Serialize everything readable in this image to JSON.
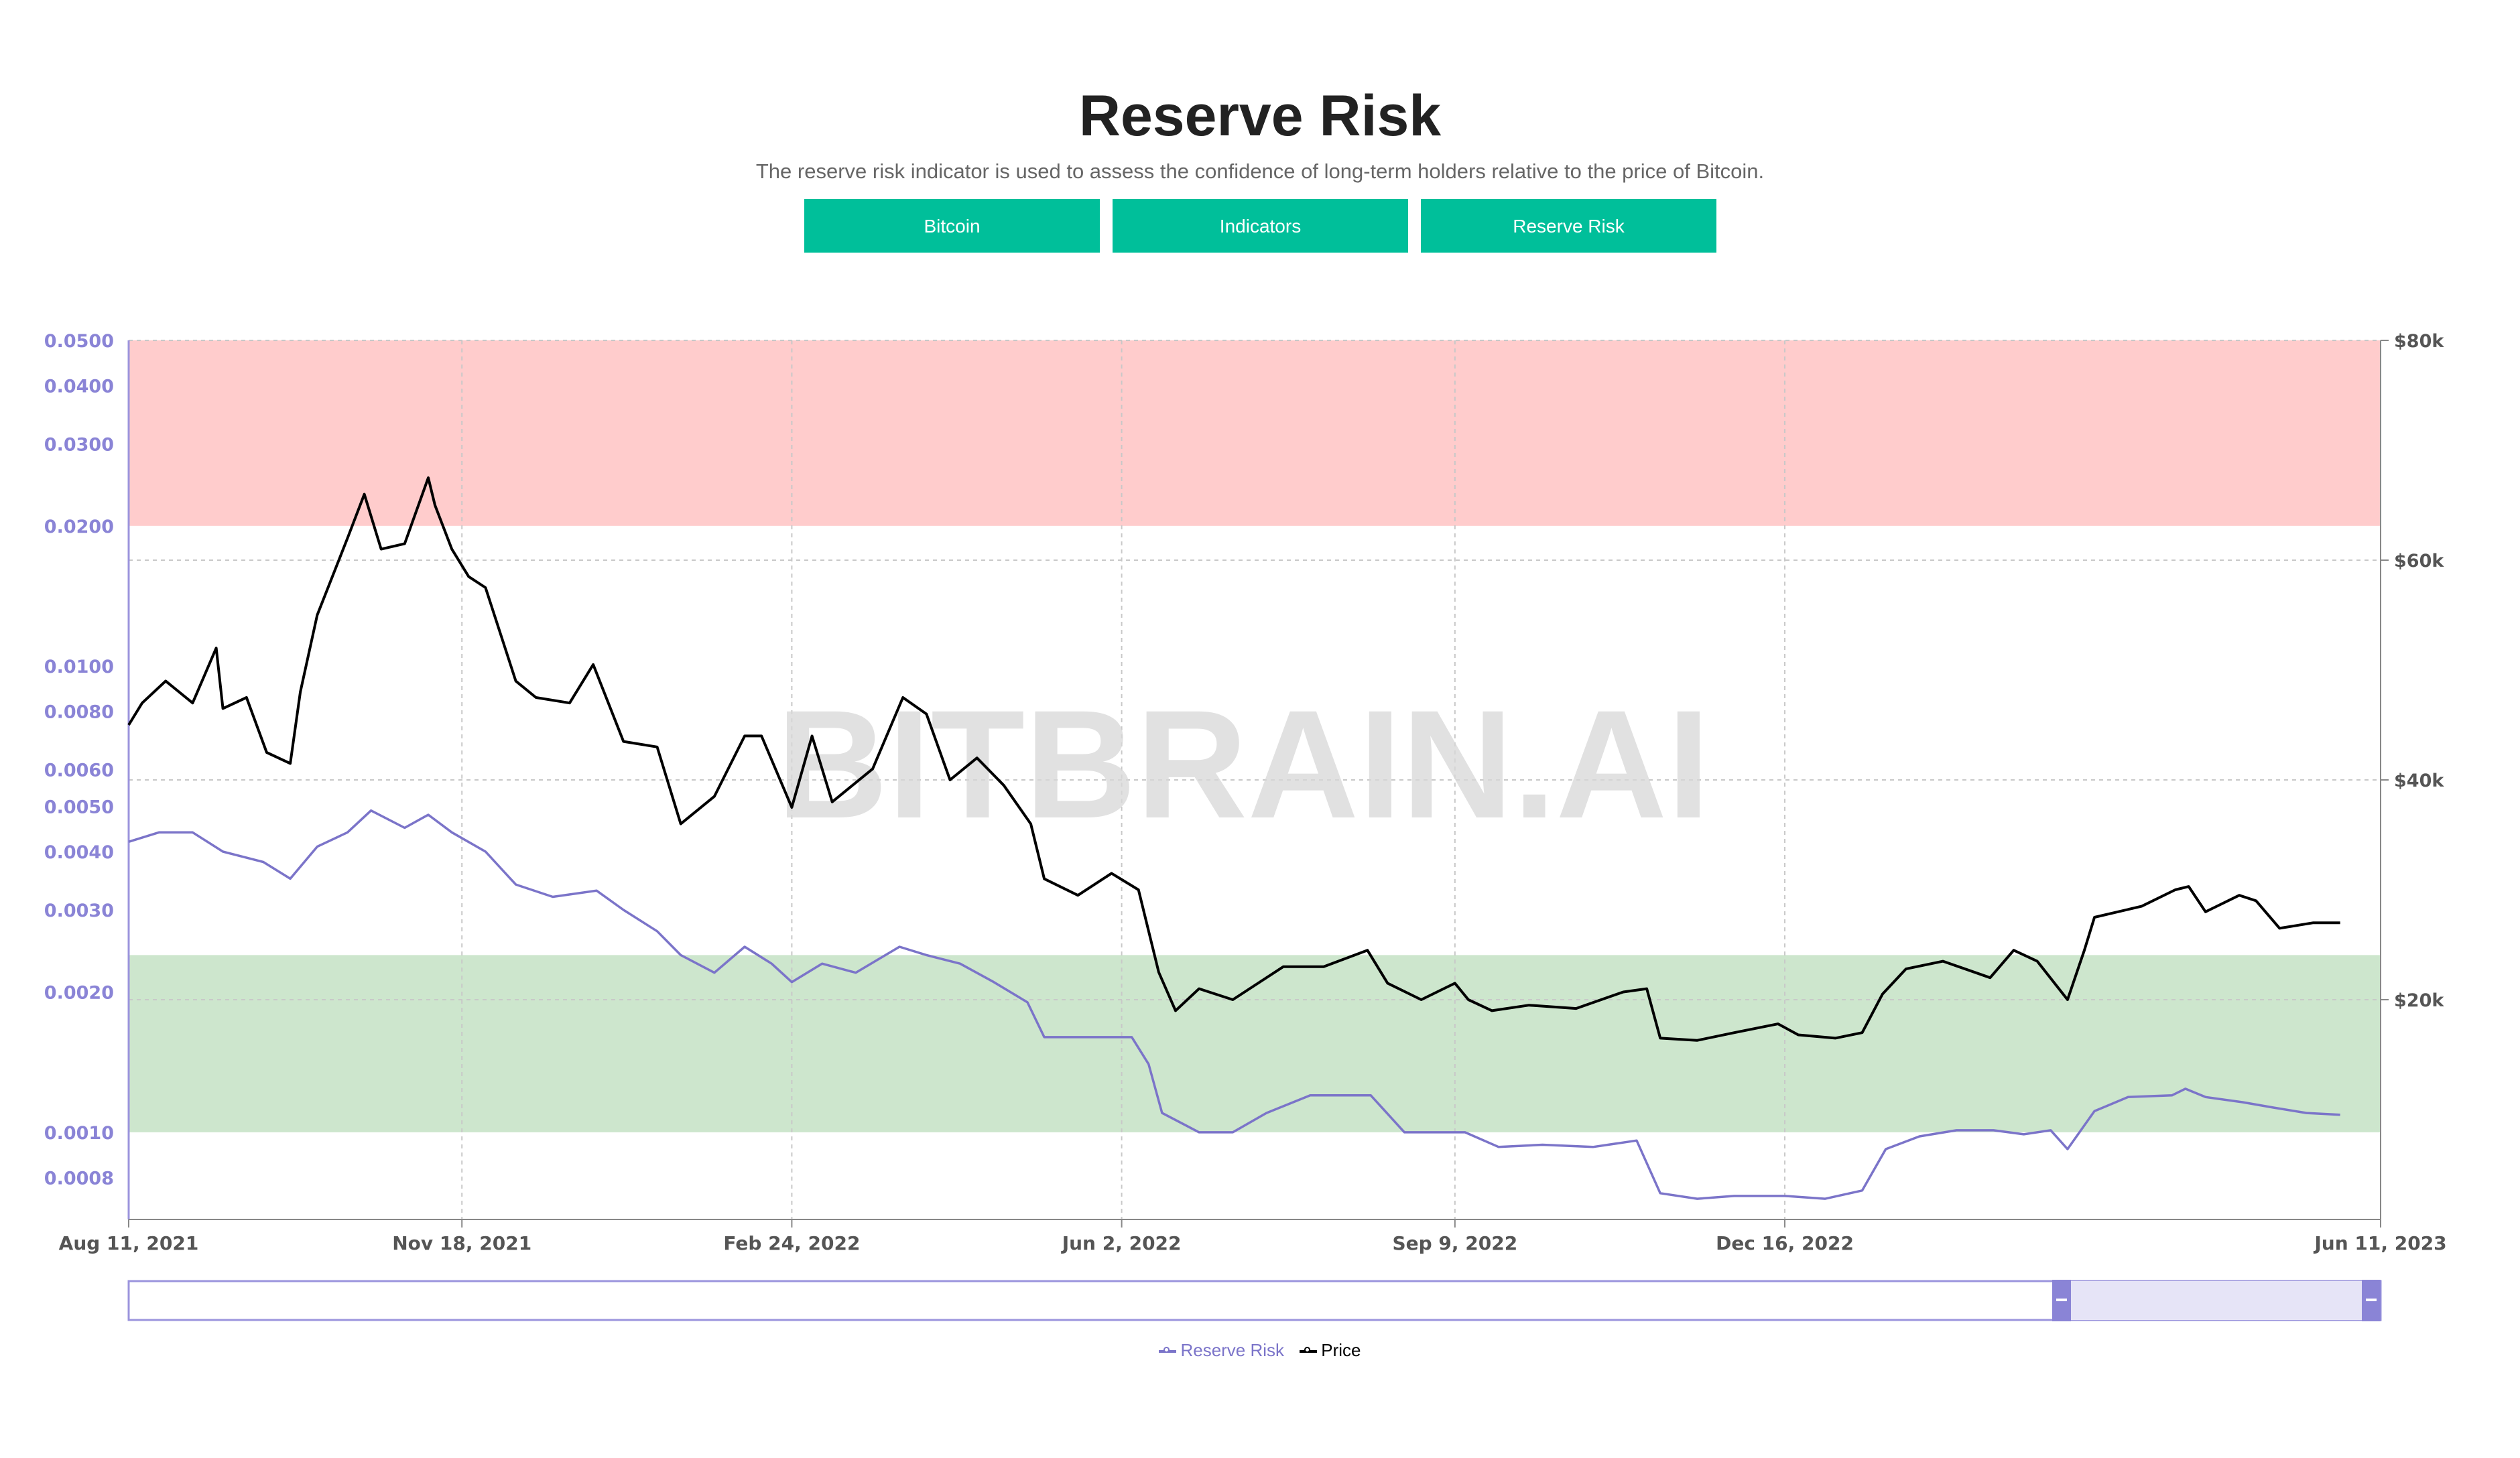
{
  "header": {
    "title": "Reserve Risk",
    "subtitle": "The reserve risk indicator is used to assess the confidence of long-term holders relative to the price of Bitcoin."
  },
  "nav": {
    "buttons": [
      "Bitcoin",
      "Indicators",
      "Reserve Risk"
    ],
    "color": "#00bf9a"
  },
  "watermark": "BITBRAIN.AI",
  "legend": {
    "items": [
      {
        "label": "Reserve Risk",
        "color": "#7b74c9"
      },
      {
        "label": "Price",
        "color": "#000000"
      }
    ]
  },
  "chart_data": {
    "type": "line",
    "title": "",
    "x_ticks": [
      {
        "date": "2021-08-11",
        "label": "Aug 11, 2021"
      },
      {
        "date": "2021-11-18",
        "label": "Nov 18, 2021"
      },
      {
        "date": "2022-02-24",
        "label": "Feb 24, 2022"
      },
      {
        "date": "2022-06-02",
        "label": "Jun 2, 2022"
      },
      {
        "date": "2022-09-09",
        "label": "Sep 9, 2022"
      },
      {
        "date": "2022-12-16",
        "label": "Dec 16, 2022"
      },
      {
        "date": "2023-06-11",
        "label": "Jun 11, 2023"
      }
    ],
    "xlim": [
      "2021-08-11",
      "2023-06-11"
    ],
    "y_left": {
      "scale": "log",
      "ylim": [
        0.00065,
        0.05
      ],
      "ticks": [
        0.05,
        0.04,
        0.03,
        0.02,
        0.01,
        0.008,
        0.006,
        0.005,
        0.004,
        0.003,
        0.002,
        0.001,
        0.0008
      ],
      "tick_labels": [
        "0.0500",
        "0.0400",
        "0.0300",
        "0.0200",
        "0.0100",
        "0.0080",
        "0.0060",
        "0.0050",
        "0.0040",
        "0.0030",
        "0.0020",
        "0.0010",
        "0.0008"
      ],
      "color": "#8a84d6"
    },
    "y_right": {
      "scale": "linear",
      "ylim": [
        0,
        80000
      ],
      "ticks": [
        80000,
        60000,
        40000,
        20000
      ],
      "tick_labels": [
        "$80k",
        "$60k",
        "$40k",
        "$20k"
      ]
    },
    "bands": [
      {
        "axis": "left",
        "from": 0.02,
        "to": 0.05,
        "color": "#ffcccc"
      },
      {
        "axis": "left",
        "from": 0.001,
        "to": 0.0024,
        "color": "#cde6cd"
      }
    ],
    "grid": true,
    "legend_position": "bottom-center",
    "series": [
      {
        "name": "Reserve Risk",
        "axis": "left",
        "color": "#7b74c9",
        "points": [
          [
            "2021-08-11",
            0.0042
          ],
          [
            "2021-08-20",
            0.0044
          ],
          [
            "2021-08-30",
            0.0044
          ],
          [
            "2021-09-08",
            0.004
          ],
          [
            "2021-09-20",
            0.0038
          ],
          [
            "2021-09-28",
            0.0035
          ],
          [
            "2021-10-06",
            0.0041
          ],
          [
            "2021-10-15",
            0.0044
          ],
          [
            "2021-10-22",
            0.0049
          ],
          [
            "2021-11-01",
            0.0045
          ],
          [
            "2021-11-08",
            0.0048
          ],
          [
            "2021-11-15",
            0.0044
          ],
          [
            "2021-11-25",
            0.004
          ],
          [
            "2021-12-04",
            0.0034
          ],
          [
            "2021-12-15",
            0.0032
          ],
          [
            "2021-12-28",
            0.0033
          ],
          [
            "2022-01-05",
            0.003
          ],
          [
            "2022-01-15",
            0.0027
          ],
          [
            "2022-01-22",
            0.0024
          ],
          [
            "2022-02-01",
            0.0022
          ],
          [
            "2022-02-10",
            0.0025
          ],
          [
            "2022-02-18",
            0.0023
          ],
          [
            "2022-02-24",
            0.0021
          ],
          [
            "2022-03-05",
            0.0023
          ],
          [
            "2022-03-15",
            0.0022
          ],
          [
            "2022-03-28",
            0.0025
          ],
          [
            "2022-04-05",
            0.0024
          ],
          [
            "2022-04-15",
            0.0023
          ],
          [
            "2022-04-25",
            0.0021
          ],
          [
            "2022-05-05",
            0.0019
          ],
          [
            "2022-05-10",
            0.0016
          ],
          [
            "2022-05-20",
            0.0016
          ],
          [
            "2022-05-30",
            0.0016
          ],
          [
            "2022-06-05",
            0.0016
          ],
          [
            "2022-06-10",
            0.0014
          ],
          [
            "2022-06-14",
            0.0011
          ],
          [
            "2022-06-25",
            0.001
          ],
          [
            "2022-07-05",
            0.001
          ],
          [
            "2022-07-15",
            0.0011
          ],
          [
            "2022-07-28",
            0.0012
          ],
          [
            "2022-08-10",
            0.0012
          ],
          [
            "2022-08-15",
            0.0012
          ],
          [
            "2022-08-25",
            0.001
          ],
          [
            "2022-09-05",
            0.001
          ],
          [
            "2022-09-12",
            0.001
          ],
          [
            "2022-09-22",
            0.00093
          ],
          [
            "2022-10-05",
            0.00094
          ],
          [
            "2022-10-20",
            0.00093
          ],
          [
            "2022-11-02",
            0.00096
          ],
          [
            "2022-11-09",
            0.00074
          ],
          [
            "2022-11-20",
            0.00072
          ],
          [
            "2022-12-01",
            0.00073
          ],
          [
            "2022-12-16",
            0.00073
          ],
          [
            "2022-12-28",
            0.00072
          ],
          [
            "2023-01-08",
            0.00075
          ],
          [
            "2023-01-15",
            0.00092
          ],
          [
            "2023-01-25",
            0.00098
          ],
          [
            "2023-02-05",
            0.00101
          ],
          [
            "2023-02-16",
            0.00101
          ],
          [
            "2023-02-25",
            0.00099
          ],
          [
            "2023-03-05",
            0.00101
          ],
          [
            "2023-03-10",
            0.00092
          ],
          [
            "2023-03-18",
            0.00111
          ],
          [
            "2023-03-28",
            0.00119
          ],
          [
            "2023-04-10",
            0.0012
          ],
          [
            "2023-04-14",
            0.00124
          ],
          [
            "2023-04-20",
            0.00119
          ],
          [
            "2023-05-01",
            0.00116
          ],
          [
            "2023-05-10",
            0.00113
          ],
          [
            "2023-05-20",
            0.0011
          ],
          [
            "2023-05-30",
            0.00109
          ]
        ]
      },
      {
        "name": "Price",
        "axis": "right",
        "color": "#000000",
        "points": [
          [
            "2021-08-11",
            45000
          ],
          [
            "2021-08-15",
            47000
          ],
          [
            "2021-08-22",
            49000
          ],
          [
            "2021-08-30",
            47000
          ],
          [
            "2021-09-06",
            52000
          ],
          [
            "2021-09-08",
            46500
          ],
          [
            "2021-09-15",
            47500
          ],
          [
            "2021-09-21",
            42500
          ],
          [
            "2021-09-28",
            41500
          ],
          [
            "2021-10-01",
            48000
          ],
          [
            "2021-10-06",
            55000
          ],
          [
            "2021-10-15",
            62000
          ],
          [
            "2021-10-20",
            66000
          ],
          [
            "2021-10-25",
            61000
          ],
          [
            "2021-11-01",
            61500
          ],
          [
            "2021-11-08",
            67500
          ],
          [
            "2021-11-10",
            65000
          ],
          [
            "2021-11-15",
            61000
          ],
          [
            "2021-11-20",
            58500
          ],
          [
            "2021-11-25",
            57500
          ],
          [
            "2021-12-04",
            49000
          ],
          [
            "2021-12-10",
            47500
          ],
          [
            "2021-12-20",
            47000
          ],
          [
            "2021-12-27",
            50500
          ],
          [
            "2022-01-05",
            43500
          ],
          [
            "2022-01-15",
            43000
          ],
          [
            "2022-01-22",
            36000
          ],
          [
            "2022-02-01",
            38500
          ],
          [
            "2022-02-10",
            44000
          ],
          [
            "2022-02-15",
            44000
          ],
          [
            "2022-02-24",
            37500
          ],
          [
            "2022-03-02",
            44000
          ],
          [
            "2022-03-08",
            38000
          ],
          [
            "2022-03-20",
            41000
          ],
          [
            "2022-03-29",
            47500
          ],
          [
            "2022-04-05",
            46000
          ],
          [
            "2022-04-12",
            40000
          ],
          [
            "2022-04-20",
            42000
          ],
          [
            "2022-04-28",
            39500
          ],
          [
            "2022-05-06",
            36000
          ],
          [
            "2022-05-10",
            31000
          ],
          [
            "2022-05-20",
            29500
          ],
          [
            "2022-05-30",
            31500
          ],
          [
            "2022-06-07",
            30000
          ],
          [
            "2022-06-13",
            22500
          ],
          [
            "2022-06-18",
            19000
          ],
          [
            "2022-06-25",
            21000
          ],
          [
            "2022-07-05",
            20000
          ],
          [
            "2022-07-20",
            23000
          ],
          [
            "2022-08-01",
            23000
          ],
          [
            "2022-08-14",
            24500
          ],
          [
            "2022-08-20",
            21500
          ],
          [
            "2022-08-30",
            20000
          ],
          [
            "2022-09-09",
            21500
          ],
          [
            "2022-09-13",
            20000
          ],
          [
            "2022-09-20",
            19000
          ],
          [
            "2022-10-01",
            19500
          ],
          [
            "2022-10-15",
            19200
          ],
          [
            "2022-10-29",
            20700
          ],
          [
            "2022-11-05",
            21000
          ],
          [
            "2022-11-09",
            16500
          ],
          [
            "2022-11-20",
            16300
          ],
          [
            "2022-12-01",
            17000
          ],
          [
            "2022-12-14",
            17800
          ],
          [
            "2022-12-20",
            16800
          ],
          [
            "2022-12-31",
            16500
          ],
          [
            "2023-01-08",
            17000
          ],
          [
            "2023-01-14",
            20500
          ],
          [
            "2023-01-21",
            22800
          ],
          [
            "2023-02-01",
            23500
          ],
          [
            "2023-02-15",
            22000
          ],
          [
            "2023-02-22",
            24500
          ],
          [
            "2023-03-01",
            23500
          ],
          [
            "2023-03-10",
            20000
          ],
          [
            "2023-03-15",
            24500
          ],
          [
            "2023-03-18",
            27500
          ],
          [
            "2023-04-01",
            28500
          ],
          [
            "2023-04-11",
            30000
          ],
          [
            "2023-04-15",
            30300
          ],
          [
            "2023-04-20",
            28000
          ],
          [
            "2023-04-30",
            29500
          ],
          [
            "2023-05-05",
            29000
          ],
          [
            "2023-05-12",
            26500
          ],
          [
            "2023-05-22",
            27000
          ],
          [
            "2023-05-30",
            27000
          ]
        ]
      }
    ]
  }
}
